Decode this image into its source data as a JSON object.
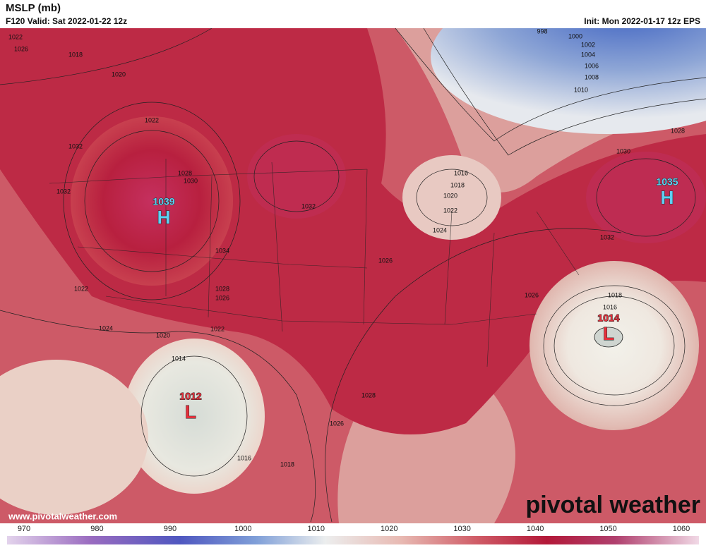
{
  "header": {
    "title": "MSLP (mb)",
    "valid": "F120 Valid: Sat 2022-01-22 12z",
    "init": "Init: Mon 2022-01-17 12z EPS"
  },
  "isobar_labels": [
    "1022",
    "1026",
    "1018",
    "1020",
    "1022",
    "1032",
    "1032",
    "1028",
    "1030",
    "1032",
    "1034",
    "1022",
    "1028",
    "1026",
    "1024",
    "1020",
    "1022",
    "1014",
    "1026",
    "1028",
    "1026",
    "1016",
    "1018",
    "1016",
    "1018",
    "1020",
    "1022",
    "1024",
    "1026",
    "1032",
    "1030",
    "1028",
    "1018",
    "1016",
    "998",
    "1000",
    "1002",
    "1004",
    "1006",
    "1008",
    "1010"
  ],
  "centers": [
    {
      "value": "1039",
      "symbol": "H"
    },
    {
      "value": "1035",
      "symbol": "H"
    },
    {
      "value": "1014",
      "symbol": "L"
    },
    {
      "value": "1012",
      "symbol": "L"
    }
  ],
  "colorbar": {
    "ticks": [
      970,
      980,
      990,
      1000,
      1010,
      1020,
      1030,
      1040,
      1050,
      1060
    ]
  },
  "footer": {
    "website": "www.pivotalweather.com",
    "logo": "pivotal weather"
  }
}
